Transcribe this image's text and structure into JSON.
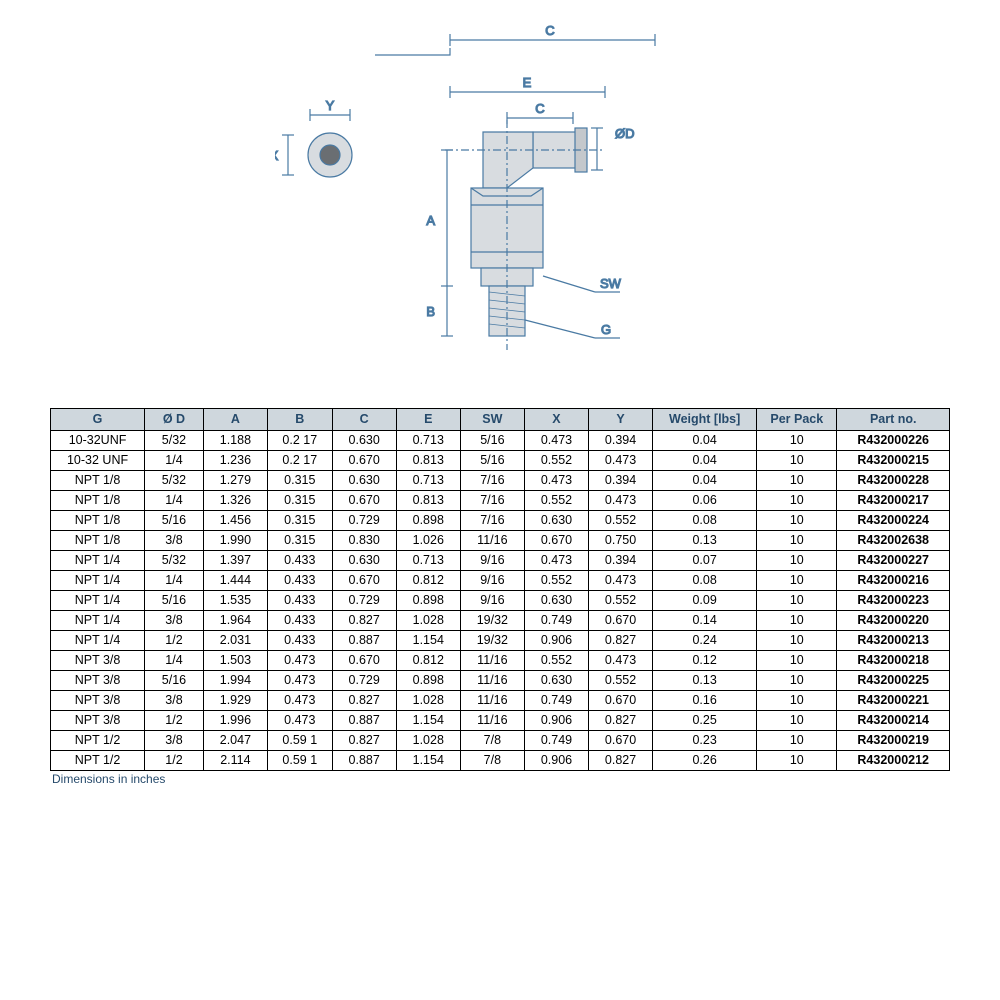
{
  "diagram": {
    "labels": {
      "C_top": "C",
      "E": "E",
      "C_inner": "C",
      "OD": "ØD",
      "Y": "Y",
      "X": "X",
      "A": "A",
      "B": "B",
      "SW": "SW",
      "G": "G"
    },
    "line_color": "#4a7aa3",
    "fill_color": "#d0d4d8"
  },
  "table": {
    "headers": [
      "G",
      "Ø D",
      "A",
      "B",
      "C",
      "E",
      "SW",
      "X",
      "Y",
      "Weight [lbs]",
      "Per Pack",
      "Part no."
    ],
    "rows": [
      [
        "10-32UNF",
        "5/32",
        "1.188",
        "0.2 17",
        "0.630",
        "0.713",
        "5/16",
        "0.473",
        "0.394",
        "0.04",
        "10",
        "R432000226"
      ],
      [
        "10-32 UNF",
        "1/4",
        "1.236",
        "0.2 17",
        "0.670",
        "0.813",
        "5/16",
        "0.552",
        "0.473",
        "0.04",
        "10",
        "R432000215"
      ],
      [
        "NPT 1/8",
        "5/32",
        "1.279",
        "0.315",
        "0.630",
        "0.713",
        "7/16",
        "0.473",
        "0.394",
        "0.04",
        "10",
        "R432000228"
      ],
      [
        "NPT 1/8",
        "1/4",
        "1.326",
        "0.315",
        "0.670",
        "0.813",
        "7/16",
        "0.552",
        "0.473",
        "0.06",
        "10",
        "R432000217"
      ],
      [
        "NPT 1/8",
        "5/16",
        "1.456",
        "0.315",
        "0.729",
        "0.898",
        "7/16",
        "0.630",
        "0.552",
        "0.08",
        "10",
        "R432000224"
      ],
      [
        "NPT 1/8",
        "3/8",
        "1.990",
        "0.315",
        "0.830",
        "1.026",
        "11/16",
        "0.670",
        "0.750",
        "0.13",
        "10",
        "R432002638"
      ],
      [
        "NPT 1/4",
        "5/32",
        "1.397",
        "0.433",
        "0.630",
        "0.713",
        "9/16",
        "0.473",
        "0.394",
        "0.07",
        "10",
        "R432000227"
      ],
      [
        "NPT 1/4",
        "1/4",
        "1.444",
        "0.433",
        "0.670",
        "0.812",
        "9/16",
        "0.552",
        "0.473",
        "0.08",
        "10",
        "R432000216"
      ],
      [
        "NPT 1/4",
        "5/16",
        "1.535",
        "0.433",
        "0.729",
        "0.898",
        "9/16",
        "0.630",
        "0.552",
        "0.09",
        "10",
        "R432000223"
      ],
      [
        "NPT 1/4",
        "3/8",
        "1.964",
        "0.433",
        "0.827",
        "1.028",
        "19/32",
        "0.749",
        "0.670",
        "0.14",
        "10",
        "R432000220"
      ],
      [
        "NPT 1/4",
        "1/2",
        "2.031",
        "0.433",
        "0.887",
        "1.154",
        "19/32",
        "0.906",
        "0.827",
        "0.24",
        "10",
        "R432000213"
      ],
      [
        "NPT 3/8",
        "1/4",
        "1.503",
        "0.473",
        "0.670",
        "0.812",
        "11/16",
        "0.552",
        "0.473",
        "0.12",
        "10",
        "R432000218"
      ],
      [
        "NPT 3/8",
        "5/16",
        "1.994",
        "0.473",
        "0.729",
        "0.898",
        "11/16",
        "0.630",
        "0.552",
        "0.13",
        "10",
        "R432000225"
      ],
      [
        "NPT 3/8",
        "3/8",
        "1.929",
        "0.473",
        "0.827",
        "1.028",
        "11/16",
        "0.749",
        "0.670",
        "0.16",
        "10",
        "R432000221"
      ],
      [
        "NPT 3/8",
        "1/2",
        "1.996",
        "0.473",
        "0.887",
        "1.154",
        "11/16",
        "0.906",
        "0.827",
        "0.25",
        "10",
        "R432000214"
      ],
      [
        "NPT 1/2",
        "3/8",
        "2.047",
        "0.59 1",
        "0.827",
        "1.028",
        "7/8",
        "0.749",
        "0.670",
        "0.23",
        "10",
        "R432000219"
      ],
      [
        "NPT 1/2",
        "1/2",
        "2.114",
        "0.59 1",
        "0.887",
        "1.154",
        "7/8",
        "0.906",
        "0.827",
        "0.26",
        "10",
        "R432000212"
      ]
    ],
    "footnote": "Dimensions in inches"
  }
}
